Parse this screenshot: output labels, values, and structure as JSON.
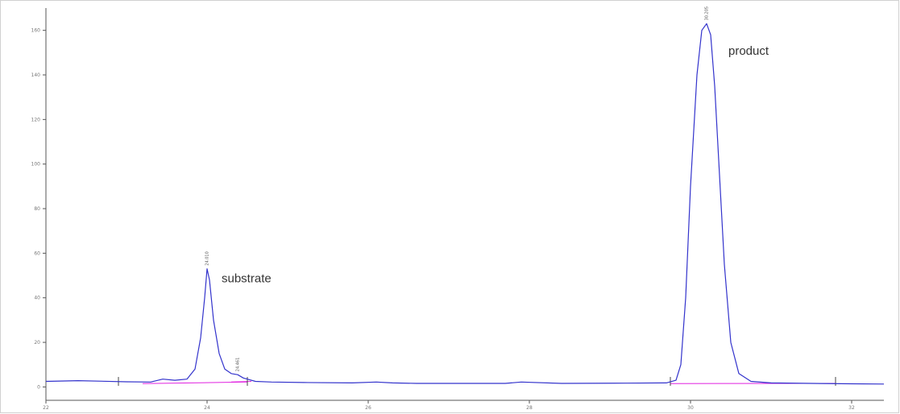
{
  "chart_data": {
    "type": "line",
    "title": "",
    "xlabel": "",
    "ylabel": "",
    "xlim": [
      22,
      32.4
    ],
    "ylim": [
      -6,
      170
    ],
    "x_ticks": [
      22,
      24,
      26,
      28,
      30,
      32
    ],
    "x_tick_labels": [
      "22",
      "24",
      "26",
      "28",
      "30",
      "32"
    ],
    "y_ticks": [
      0,
      20,
      40,
      60,
      80,
      100,
      120,
      140,
      160
    ],
    "y_tick_labels": [
      "0",
      "20",
      "40",
      "60",
      "80",
      "100",
      "120",
      "140",
      "160"
    ],
    "grid": false,
    "colors": {
      "trace": "#3333cc",
      "baseline": "#e020e0",
      "axes": "#555555",
      "frame": "#cccccc"
    },
    "series": [
      {
        "x": [
          22.0,
          22.4,
          23.0,
          23.3,
          23.45,
          23.6,
          23.75,
          23.85,
          23.92,
          23.97,
          24.0,
          24.03,
          24.08,
          24.15,
          24.22,
          24.3,
          24.38,
          24.45,
          24.6,
          24.8,
          25.2,
          25.8,
          26.1,
          26.3,
          26.6,
          27.2,
          27.7,
          27.9,
          28.4,
          29.2,
          29.7,
          29.82,
          29.88,
          29.94,
          30.0,
          30.08,
          30.14,
          30.2,
          30.25,
          30.3,
          30.36,
          30.42,
          30.5,
          30.6,
          30.75,
          31.0,
          31.5,
          32.0,
          32.4
        ],
        "y": [
          2.5,
          2.8,
          2.3,
          2.2,
          3.5,
          3.0,
          3.5,
          8.0,
          22.0,
          40.0,
          53.0,
          48.0,
          30.0,
          15.0,
          8.0,
          6.0,
          5.5,
          4.0,
          2.5,
          2.2,
          2.0,
          1.8,
          2.2,
          1.8,
          1.6,
          1.6,
          1.6,
          2.2,
          1.6,
          1.7,
          1.8,
          3.0,
          10.0,
          40.0,
          90.0,
          140.0,
          160.0,
          163.0,
          158.0,
          135.0,
          95.0,
          55.0,
          20.0,
          6.0,
          2.5,
          1.8,
          1.6,
          1.4,
          1.3
        ]
      }
    ],
    "baselines": [
      {
        "x": [
          23.2,
          24.5
        ],
        "y": [
          1.5,
          2.2
        ]
      },
      {
        "x": [
          24.3,
          24.55
        ],
        "y": [
          2.2,
          2.5
        ]
      },
      {
        "x": [
          29.75,
          31.8
        ],
        "y": [
          1.5,
          1.6
        ]
      }
    ],
    "retention_marks": [
      22.9,
      24.5,
      29.75,
      31.8
    ],
    "peak_labels": [
      {
        "x": 24.0,
        "y": 53,
        "text": "24.010"
      },
      {
        "x": 24.38,
        "y": 5.5,
        "text": "24.461"
      },
      {
        "x": 30.2,
        "y": 163,
        "text": "30.205"
      }
    ],
    "annotations": [
      {
        "text": "substrate",
        "x": 24.18,
        "y": 47
      },
      {
        "text": "product",
        "x": 30.47,
        "y": 149
      }
    ]
  }
}
